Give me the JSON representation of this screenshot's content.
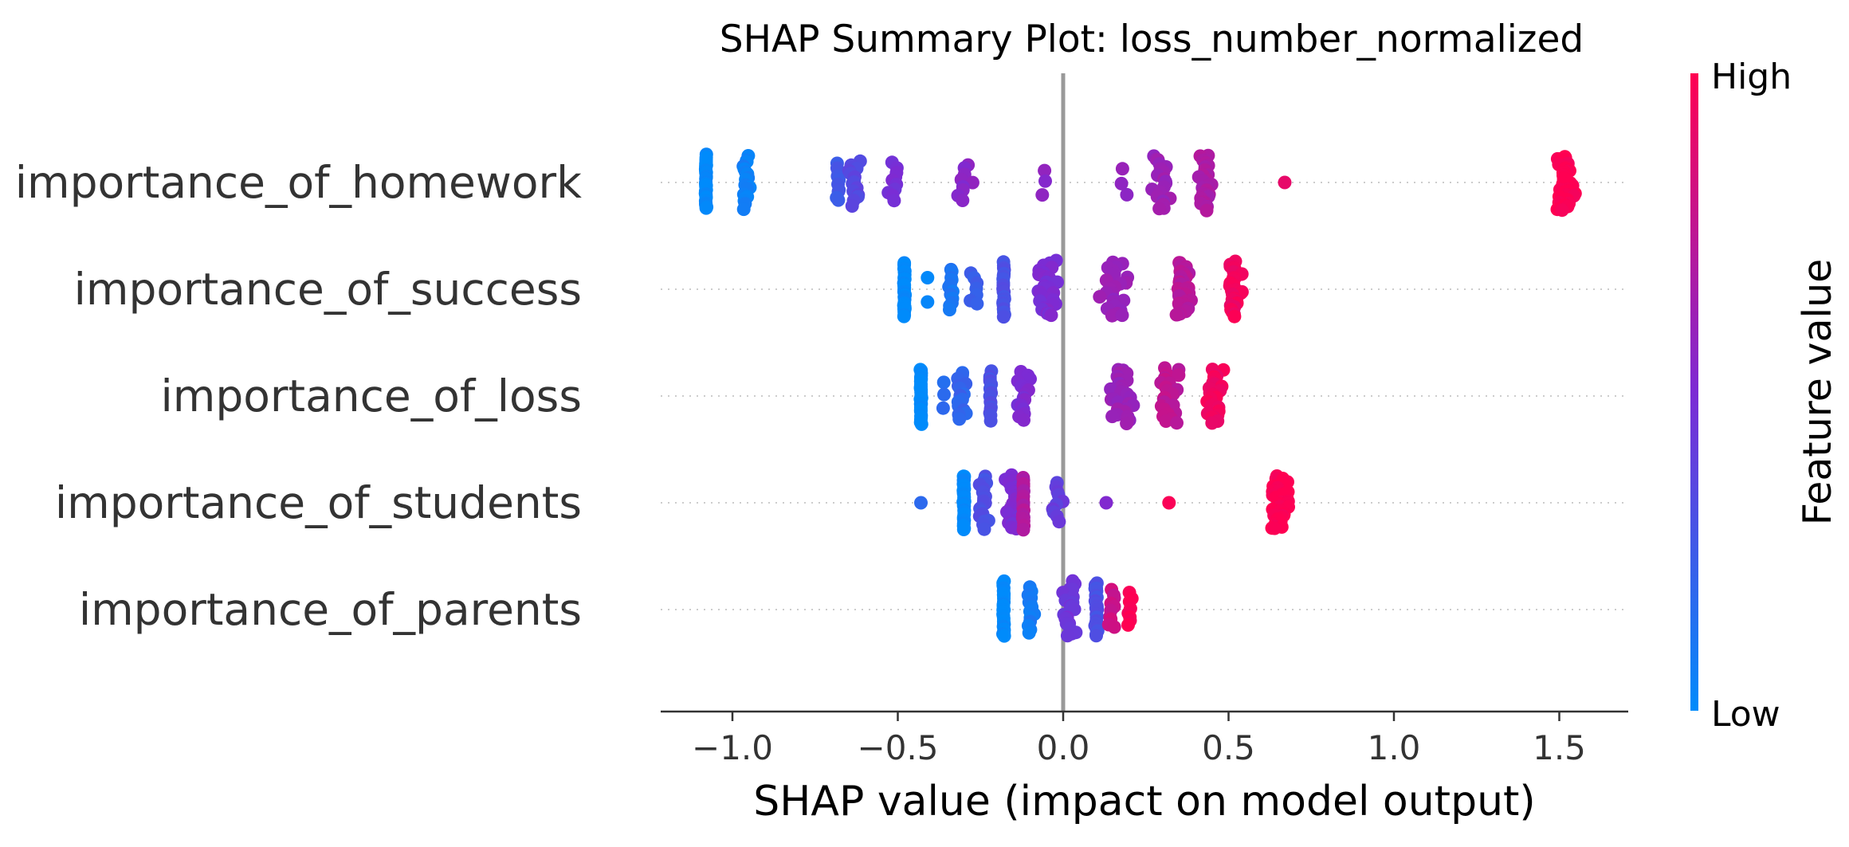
{
  "colors": {
    "low": "#008bfb",
    "mid": "#7c2bd4",
    "high": "#ff0052",
    "zero_line": "#999999",
    "axis": "#333333"
  },
  "chart_data": {
    "type": "scatter",
    "subtype": "shap-beeswarm",
    "title": "SHAP Summary Plot: loss_number_normalized",
    "xlabel": "SHAP value (impact on model output)",
    "xlim": [
      -1.22,
      1.72
    ],
    "xticks": [
      -1.0,
      -0.5,
      0.0,
      0.5,
      1.0,
      1.5
    ],
    "xtick_labels": [
      "−1.0",
      "−0.5",
      "0.0",
      "0.5",
      "1.0",
      "1.5"
    ],
    "colorbar": {
      "title": "Feature value",
      "high_label": "High",
      "low_label": "Low"
    },
    "features": [
      {
        "name": "importance_of_homework",
        "clusters": [
          {
            "x": -1.08,
            "n": 30,
            "spread": 0.004,
            "fv": 0.0
          },
          {
            "x": -0.96,
            "n": 18,
            "spread": 0.02,
            "fv": 0.06
          },
          {
            "x": -0.68,
            "n": 10,
            "spread": 0.01,
            "fv": 0.25
          },
          {
            "x": -0.63,
            "n": 14,
            "spread": 0.04,
            "fv": 0.35
          },
          {
            "x": -0.52,
            "n": 10,
            "spread": 0.05,
            "fv": 0.48
          },
          {
            "x": -0.3,
            "n": 9,
            "spread": 0.05,
            "fv": 0.55
          },
          {
            "x": -0.05,
            "n": 3,
            "spread": 0.04,
            "fv": 0.55
          },
          {
            "x": 0.18,
            "n": 3,
            "spread": 0.03,
            "fv": 0.6
          },
          {
            "x": 0.3,
            "n": 20,
            "spread": 0.05,
            "fv": 0.62
          },
          {
            "x": 0.43,
            "n": 34,
            "spread": 0.05,
            "fv": 0.68
          },
          {
            "x": 0.67,
            "n": 1,
            "spread": 0.0,
            "fv": 0.9
          },
          {
            "x": 1.52,
            "n": 42,
            "spread": 0.05,
            "fv": 1.0
          }
        ]
      },
      {
        "name": "importance_of_success",
        "clusters": [
          {
            "x": -0.48,
            "n": 28,
            "spread": 0.004,
            "fv": 0.0
          },
          {
            "x": -0.41,
            "n": 2,
            "spread": 0.0,
            "fv": 0.05
          },
          {
            "x": -0.34,
            "n": 12,
            "spread": 0.02,
            "fv": 0.1
          },
          {
            "x": -0.27,
            "n": 7,
            "spread": 0.05,
            "fv": 0.25
          },
          {
            "x": -0.18,
            "n": 22,
            "spread": 0.005,
            "fv": 0.3
          },
          {
            "x": -0.05,
            "n": 30,
            "spread": 0.07,
            "fv": 0.5
          },
          {
            "x": 0.15,
            "n": 28,
            "spread": 0.08,
            "fv": 0.6
          },
          {
            "x": 0.36,
            "n": 32,
            "spread": 0.06,
            "fv": 0.72
          },
          {
            "x": 0.52,
            "n": 32,
            "spread": 0.05,
            "fv": 0.95
          }
        ]
      },
      {
        "name": "importance_of_loss",
        "clusters": [
          {
            "x": -0.43,
            "n": 30,
            "spread": 0.004,
            "fv": 0.0
          },
          {
            "x": -0.36,
            "n": 3,
            "spread": 0.01,
            "fv": 0.15
          },
          {
            "x": -0.31,
            "n": 15,
            "spread": 0.03,
            "fv": 0.2
          },
          {
            "x": -0.22,
            "n": 16,
            "spread": 0.005,
            "fv": 0.3
          },
          {
            "x": -0.12,
            "n": 16,
            "spread": 0.05,
            "fv": 0.5
          },
          {
            "x": 0.18,
            "n": 30,
            "spread": 0.06,
            "fv": 0.62
          },
          {
            "x": 0.32,
            "n": 26,
            "spread": 0.05,
            "fv": 0.75
          },
          {
            "x": 0.46,
            "n": 26,
            "spread": 0.04,
            "fv": 0.95
          }
        ]
      },
      {
        "name": "importance_of_students",
        "clusters": [
          {
            "x": -0.43,
            "n": 1,
            "spread": 0.0,
            "fv": 0.2
          },
          {
            "x": -0.3,
            "n": 32,
            "spread": 0.004,
            "fv": 0.0
          },
          {
            "x": -0.24,
            "n": 18,
            "spread": 0.03,
            "fv": 0.3
          },
          {
            "x": -0.15,
            "n": 22,
            "spread": 0.05,
            "fv": 0.5
          },
          {
            "x": -0.12,
            "n": 18,
            "spread": 0.005,
            "fv": 0.7
          },
          {
            "x": -0.02,
            "n": 10,
            "spread": 0.04,
            "fv": 0.4
          },
          {
            "x": 0.13,
            "n": 1,
            "spread": 0.0,
            "fv": 0.5
          },
          {
            "x": 0.32,
            "n": 1,
            "spread": 0.0,
            "fv": 0.95
          },
          {
            "x": 0.66,
            "n": 42,
            "spread": 0.07,
            "fv": 1.0
          }
        ]
      },
      {
        "name": "importance_of_parents",
        "clusters": [
          {
            "x": -0.18,
            "n": 28,
            "spread": 0.004,
            "fv": 0.0
          },
          {
            "x": -0.1,
            "n": 14,
            "spread": 0.015,
            "fv": 0.08
          },
          {
            "x": 0.02,
            "n": 20,
            "spread": 0.04,
            "fv": 0.45
          },
          {
            "x": 0.1,
            "n": 24,
            "spread": 0.01,
            "fv": 0.3
          },
          {
            "x": 0.15,
            "n": 10,
            "spread": 0.03,
            "fv": 0.8
          },
          {
            "x": 0.2,
            "n": 8,
            "spread": 0.02,
            "fv": 1.0
          }
        ]
      }
    ]
  }
}
